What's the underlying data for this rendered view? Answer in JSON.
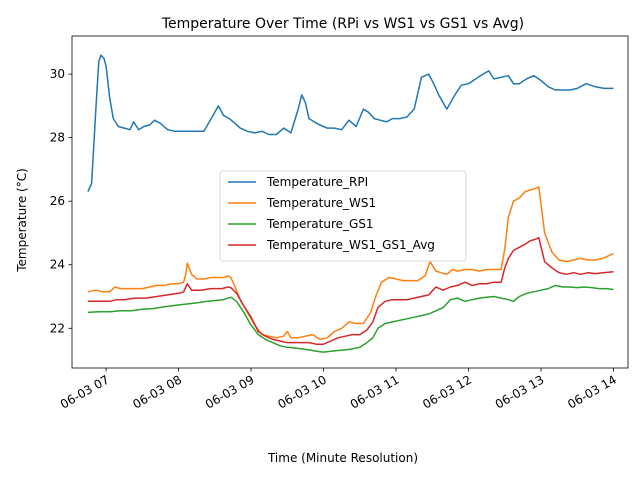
{
  "chart_data": {
    "type": "line",
    "title": "Temperature Over Time (RPi vs WS1 vs GS1 vs Avg)",
    "xlabel": "Time (Minute Resolution)",
    "ylabel": "Temperature (°C)",
    "x_tick_labels": [
      "06-03 07",
      "06-03 08",
      "06-03 09",
      "06-03 10",
      "06-03 11",
      "06-03 12",
      "06-03 13",
      "06-03 14"
    ],
    "x_tick_hours": [
      7,
      8,
      9,
      10,
      11,
      12,
      13,
      14
    ],
    "xlim": [
      6.53,
      14.2
    ],
    "ylim": [
      20.75,
      31.2
    ],
    "y_ticks": [
      22,
      24,
      26,
      28,
      30
    ],
    "y_tick_labels": [
      "22",
      "24",
      "26",
      "28",
      "30"
    ],
    "grid": false,
    "legend_position": "center-right",
    "series": [
      {
        "name": "Temperature_RPI",
        "color": "#1f77b4",
        "x": [
          6.75,
          6.8,
          6.87,
          6.9,
          6.93,
          6.97,
          7.0,
          7.05,
          7.1,
          7.17,
          7.25,
          7.33,
          7.38,
          7.45,
          7.52,
          7.6,
          7.67,
          7.75,
          7.85,
          7.95,
          8.05,
          8.12,
          8.2,
          8.35,
          8.55,
          8.62,
          8.7,
          8.78,
          8.85,
          8.95,
          9.05,
          9.15,
          9.25,
          9.35,
          9.45,
          9.55,
          9.65,
          9.7,
          9.75,
          9.8,
          9.87,
          9.95,
          10.05,
          10.15,
          10.25,
          10.35,
          10.45,
          10.55,
          10.62,
          10.7,
          10.78,
          10.87,
          10.95,
          11.05,
          11.15,
          11.25,
          11.35,
          11.45,
          11.52,
          11.6,
          11.7,
          11.8,
          11.9,
          12.0,
          12.1,
          12.2,
          12.28,
          12.35,
          12.45,
          12.55,
          12.62,
          12.7,
          12.8,
          12.9,
          13.0,
          13.1,
          13.2,
          13.3,
          13.4,
          13.5,
          13.62,
          13.75,
          13.87,
          14.0
        ],
        "y": [
          26.3,
          26.55,
          29.3,
          30.4,
          30.6,
          30.5,
          30.25,
          29.25,
          28.6,
          28.35,
          28.3,
          28.25,
          28.5,
          28.25,
          28.35,
          28.4,
          28.55,
          28.45,
          28.25,
          28.2,
          28.2,
          28.2,
          28.2,
          28.2,
          29.0,
          28.7,
          28.6,
          28.45,
          28.3,
          28.2,
          28.15,
          28.2,
          28.1,
          28.1,
          28.3,
          28.15,
          28.9,
          29.35,
          29.1,
          28.6,
          28.5,
          28.4,
          28.3,
          28.3,
          28.25,
          28.55,
          28.35,
          28.9,
          28.8,
          28.6,
          28.55,
          28.5,
          28.6,
          28.6,
          28.65,
          28.9,
          29.9,
          30.0,
          29.7,
          29.3,
          28.9,
          29.3,
          29.65,
          29.7,
          29.85,
          30.0,
          30.1,
          29.85,
          29.9,
          29.95,
          29.7,
          29.7,
          29.85,
          29.95,
          29.8,
          29.6,
          29.5,
          29.5,
          29.5,
          29.55,
          29.7,
          29.6,
          29.55,
          29.55
        ]
      },
      {
        "name": "Temperature_WS1",
        "color": "#ff7f0e",
        "x": [
          6.75,
          6.85,
          6.95,
          7.05,
          7.12,
          7.2,
          7.3,
          7.4,
          7.5,
          7.6,
          7.7,
          7.8,
          7.9,
          8.0,
          8.07,
          8.1,
          8.12,
          8.18,
          8.25,
          8.35,
          8.45,
          8.55,
          8.62,
          8.68,
          8.72,
          8.78,
          8.85,
          8.95,
          9.05,
          9.15,
          9.25,
          9.35,
          9.45,
          9.5,
          9.55,
          9.65,
          9.75,
          9.85,
          9.95,
          10.05,
          10.15,
          10.25,
          10.35,
          10.45,
          10.55,
          10.65,
          10.72,
          10.8,
          10.9,
          11.0,
          11.1,
          11.2,
          11.3,
          11.4,
          11.47,
          11.55,
          11.62,
          11.7,
          11.78,
          11.85,
          11.95,
          12.05,
          12.15,
          12.25,
          12.35,
          12.45,
          12.5,
          12.55,
          12.62,
          12.7,
          12.78,
          12.85,
          12.92,
          12.97,
          13.05,
          13.15,
          13.25,
          13.35,
          13.45,
          13.55,
          13.65,
          13.75,
          13.85,
          14.0
        ],
        "y": [
          23.15,
          23.2,
          23.15,
          23.15,
          23.3,
          23.25,
          23.25,
          23.25,
          23.25,
          23.3,
          23.35,
          23.35,
          23.4,
          23.4,
          23.45,
          23.7,
          24.05,
          23.7,
          23.55,
          23.55,
          23.6,
          23.6,
          23.6,
          23.65,
          23.6,
          23.3,
          22.9,
          22.5,
          22.1,
          21.8,
          21.75,
          21.7,
          21.75,
          21.9,
          21.7,
          21.7,
          21.75,
          21.8,
          21.65,
          21.7,
          21.9,
          22.0,
          22.2,
          22.15,
          22.15,
          22.5,
          23.0,
          23.45,
          23.6,
          23.55,
          23.5,
          23.5,
          23.5,
          23.65,
          24.1,
          23.8,
          23.75,
          23.7,
          23.85,
          23.8,
          23.85,
          23.85,
          23.8,
          23.85,
          23.85,
          23.85,
          24.5,
          25.5,
          26.0,
          26.1,
          26.3,
          26.35,
          26.4,
          26.45,
          25.0,
          24.4,
          24.15,
          24.1,
          24.15,
          24.2,
          24.15,
          24.15,
          24.2,
          24.35
        ]
      },
      {
        "name": "Temperature_GS1",
        "color": "#2ca02c",
        "x": [
          6.75,
          6.9,
          7.05,
          7.2,
          7.35,
          7.5,
          7.65,
          7.8,
          7.95,
          8.1,
          8.25,
          8.4,
          8.55,
          8.62,
          8.68,
          8.72,
          8.8,
          8.9,
          9.0,
          9.1,
          9.2,
          9.3,
          9.4,
          9.5,
          9.6,
          9.7,
          9.8,
          9.9,
          10.0,
          10.1,
          10.2,
          10.3,
          10.4,
          10.5,
          10.6,
          10.68,
          10.75,
          10.85,
          10.95,
          11.05,
          11.15,
          11.25,
          11.35,
          11.45,
          11.55,
          11.65,
          11.75,
          11.85,
          11.95,
          12.05,
          12.15,
          12.25,
          12.35,
          12.45,
          12.55,
          12.62,
          12.7,
          12.8,
          12.9,
          13.0,
          13.1,
          13.2,
          13.3,
          13.4,
          13.5,
          13.6,
          13.7,
          13.8,
          13.9,
          14.0
        ],
        "y": [
          22.5,
          22.52,
          22.52,
          22.55,
          22.55,
          22.6,
          22.62,
          22.68,
          22.72,
          22.76,
          22.8,
          22.85,
          22.88,
          22.9,
          22.95,
          22.98,
          22.85,
          22.5,
          22.1,
          21.8,
          21.65,
          21.55,
          21.45,
          21.4,
          21.38,
          21.35,
          21.32,
          21.28,
          21.25,
          21.28,
          21.3,
          21.32,
          21.35,
          21.4,
          21.55,
          21.7,
          22.0,
          22.15,
          22.2,
          22.25,
          22.3,
          22.35,
          22.4,
          22.45,
          22.55,
          22.65,
          22.9,
          22.95,
          22.85,
          22.9,
          22.95,
          22.98,
          23.0,
          22.95,
          22.9,
          22.85,
          23.0,
          23.1,
          23.15,
          23.2,
          23.25,
          23.35,
          23.3,
          23.3,
          23.28,
          23.3,
          23.28,
          23.25,
          23.25,
          23.22
        ]
      },
      {
        "name": "Temperature_WS1_GS1_Avg",
        "color": "#d62728",
        "x": [
          6.75,
          6.9,
          7.05,
          7.15,
          7.25,
          7.4,
          7.55,
          7.7,
          7.85,
          8.0,
          8.07,
          8.12,
          8.18,
          8.3,
          8.45,
          8.6,
          8.68,
          8.72,
          8.8,
          8.9,
          9.0,
          9.1,
          9.2,
          9.3,
          9.4,
          9.5,
          9.6,
          9.7,
          9.8,
          9.9,
          10.0,
          10.1,
          10.2,
          10.3,
          10.4,
          10.5,
          10.6,
          10.68,
          10.75,
          10.85,
          10.95,
          11.05,
          11.15,
          11.25,
          11.35,
          11.45,
          11.55,
          11.65,
          11.75,
          11.85,
          11.95,
          12.05,
          12.15,
          12.25,
          12.35,
          12.45,
          12.5,
          12.55,
          12.62,
          12.7,
          12.78,
          12.85,
          12.92,
          12.97,
          13.05,
          13.15,
          13.25,
          13.35,
          13.45,
          13.55,
          13.65,
          13.75,
          13.85,
          14.0
        ],
        "y": [
          22.85,
          22.85,
          22.85,
          22.9,
          22.9,
          22.95,
          22.95,
          23.0,
          23.05,
          23.1,
          23.15,
          23.4,
          23.2,
          23.2,
          23.25,
          23.25,
          23.3,
          23.28,
          23.1,
          22.7,
          22.35,
          21.9,
          21.75,
          21.65,
          21.6,
          21.55,
          21.55,
          21.55,
          21.55,
          21.5,
          21.5,
          21.6,
          21.7,
          21.75,
          21.8,
          21.8,
          21.95,
          22.2,
          22.65,
          22.85,
          22.9,
          22.9,
          22.9,
          22.95,
          23.0,
          23.05,
          23.3,
          23.2,
          23.3,
          23.35,
          23.45,
          23.35,
          23.4,
          23.4,
          23.45,
          23.45,
          23.9,
          24.2,
          24.45,
          24.55,
          24.65,
          24.75,
          24.8,
          24.85,
          24.1,
          23.9,
          23.75,
          23.7,
          23.75,
          23.7,
          23.75,
          23.72,
          23.75,
          23.78
        ]
      }
    ]
  }
}
